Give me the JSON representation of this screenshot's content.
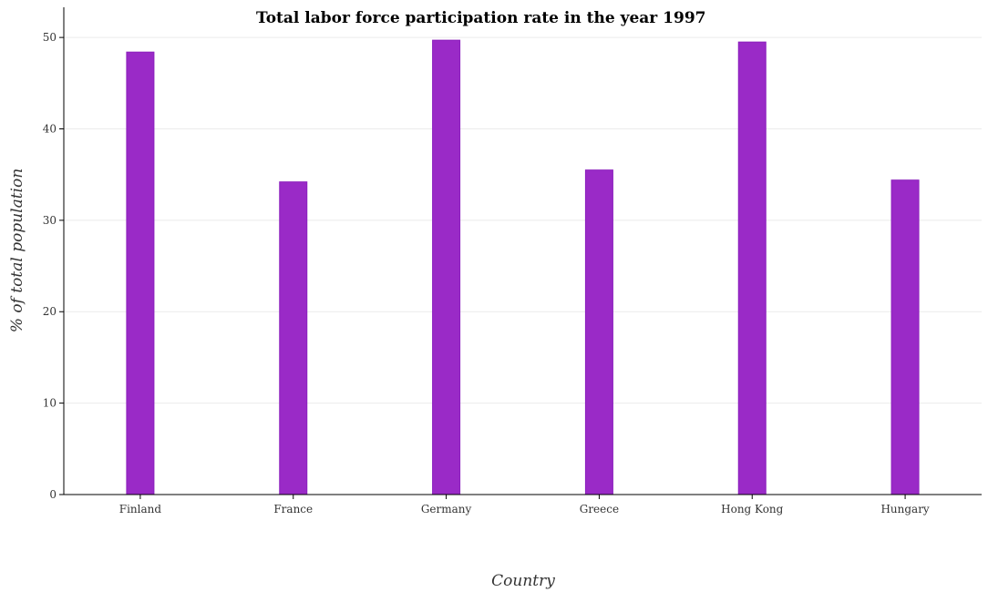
{
  "chart_data": {
    "type": "bar",
    "title": "Total labor force participation rate in the year 1997",
    "xlabel": "Country",
    "ylabel": "% of total population",
    "categories": [
      "Finland",
      "France",
      "Germany",
      "Greece",
      "Hong Kong",
      "Hungary"
    ],
    "values": [
      48.4,
      34.2,
      49.7,
      35.5,
      49.5,
      34.4
    ],
    "ylim": [
      0,
      53.3
    ],
    "yticks": [
      0,
      10,
      20,
      30,
      40,
      50
    ],
    "grid": true,
    "colors": {
      "bar": "#9a2ac7",
      "grid": "#ebebeb"
    }
  }
}
